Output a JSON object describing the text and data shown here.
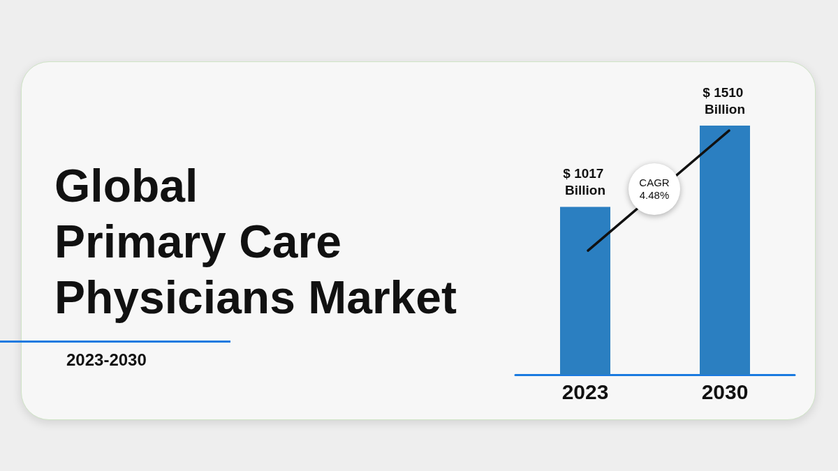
{
  "chart_data": {
    "type": "bar",
    "title": "Global\nPrimary Care\nPhysicians Market",
    "subtitle": "2023-2030",
    "categories": [
      "2023",
      "2030"
    ],
    "values": [
      1017,
      1510
    ],
    "color": "#2b7fc1",
    "value_labels": [
      "$ 1017 Billion",
      "$ 1510 Billion"
    ],
    "annotations": [
      "CAGR 4.48%"
    ]
  }
}
